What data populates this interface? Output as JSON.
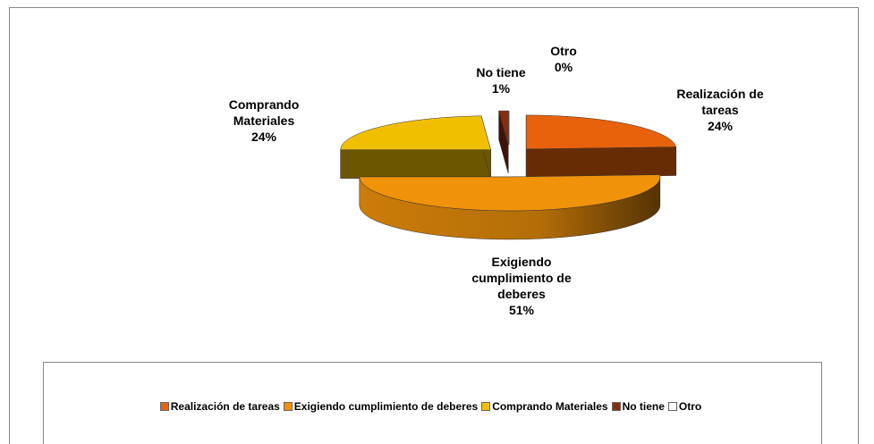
{
  "chart_data": {
    "type": "pie3d",
    "categories": [
      "Realización de tareas",
      "Exigiendo cumplimiento de deberes",
      "Comprando Materiales",
      "No tiene",
      "Otro"
    ],
    "values": [
      24,
      51,
      24,
      1,
      0
    ],
    "value_labels": [
      "24%",
      "51%",
      "24%",
      "1%",
      "0%"
    ],
    "colors": [
      "#E8620C",
      "#F0920A",
      "#F0C000",
      "#8A2C0C",
      "#FFFFFF"
    ],
    "legend": "bottom"
  }
}
